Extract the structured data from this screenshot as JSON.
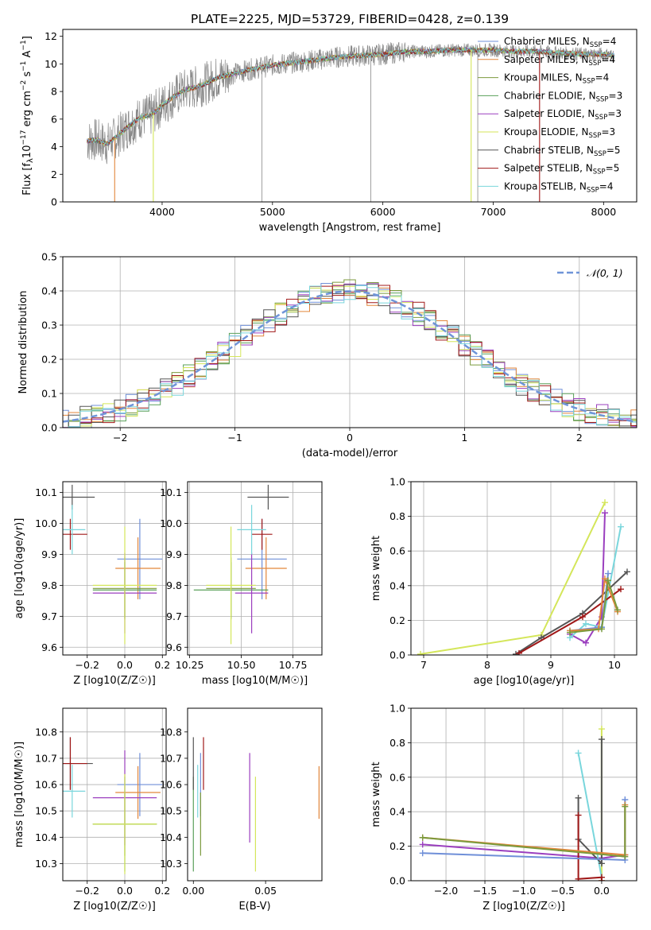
{
  "figure": {
    "title": "PLATE=2225, MJD=53729, FIBERID=0428, z=0.139"
  },
  "model_colors": [
    "#6f8fd8",
    "#e2863b",
    "#7b9a3c",
    "#5aa05a",
    "#9b3fbf",
    "#d4e65a",
    "#555555",
    "#a01818",
    "#79d6dc"
  ],
  "chart_data": [
    {
      "id": "spectrum",
      "type": "line",
      "xlabel": "wavelength [Angstrom, rest frame]",
      "ylabel": "Flux [f_λ 10^-17 erg cm^-2 s^-1 A^-1]",
      "xlim": [
        3100,
        8300
      ],
      "ylim": [
        0,
        12.5
      ],
      "xticks": [
        4000,
        5000,
        6000,
        7000,
        8000
      ],
      "yticks": [
        0,
        2,
        4,
        6,
        8,
        10,
        12
      ],
      "grid": false,
      "legend_position": "top-right",
      "legend": [
        "Chabrier MILES, N_SSP=4",
        "Salpeter MILES, N_SSP=4",
        "Kroupa MILES, N_SSP=4",
        "Chabrier ELODIE, N_SSP=3",
        "Salpeter ELODIE, N_SSP=3",
        "Kroupa ELODIE, N_SSP=3",
        "Chabrier STELIB, N_SSP=5",
        "Salpeter STELIB, N_SSP=5",
        "Kroupa STELIB, N_SSP=4"
      ],
      "continuum": {
        "x": [
          3320,
          3400,
          3500,
          3600,
          3700,
          3800,
          3900,
          4000,
          4100,
          4200,
          4300,
          4400,
          4500,
          4600,
          4800,
          5000,
          5200,
          5400,
          5600,
          5800,
          6000,
          6200,
          6400,
          6600,
          6800,
          7000,
          7200,
          7400,
          7600,
          7800,
          8000,
          8100
        ],
        "y": [
          4.4,
          4.5,
          4.2,
          4.8,
          5.5,
          6.1,
          6.3,
          7.0,
          7.6,
          8.1,
          8.3,
          8.6,
          9.0,
          9.2,
          9.6,
          9.9,
          10.1,
          10.3,
          10.5,
          10.6,
          10.7,
          10.9,
          10.9,
          11.0,
          11.0,
          11.0,
          10.9,
          10.9,
          10.8,
          10.7,
          10.7,
          10.6
        ]
      },
      "data_spikes": [
        4905,
        5890,
        6860
      ],
      "model_dropouts": [
        {
          "model": 1,
          "x": 3570
        },
        {
          "model": 5,
          "x": 3920
        },
        {
          "model": 5,
          "x": 6800
        },
        {
          "model": 7,
          "x": 7420
        }
      ]
    },
    {
      "id": "residuals",
      "type": "bar",
      "xlabel": "(data-model)/error",
      "ylabel": "Normed distribution",
      "xlim": [
        -2.5,
        2.5
      ],
      "ylim": [
        0,
        0.5
      ],
      "xticks": [
        -2,
        -1,
        0,
        1,
        2
      ],
      "yticks": [
        0.0,
        0.1,
        0.2,
        0.3,
        0.4,
        0.5
      ],
      "grid": true,
      "legend_position": "top-right",
      "reference_label": "𝒩(0, 1)",
      "bin_width": 0.1,
      "n_models": 9
    },
    {
      "id": "age_vs_Z",
      "type": "scatter",
      "xlabel": "Z [log10(Z/Z☉)]",
      "ylabel": "age [log10(age/yr)]",
      "xlim": [
        -0.33,
        0.22
      ],
      "ylim": [
        9.575,
        10.135
      ],
      "xticks": [
        -0.2,
        0.0,
        0.2
      ],
      "yticks": [
        9.6,
        9.7,
        9.8,
        9.9,
        10.0,
        10.1
      ],
      "grid": true,
      "points": [
        {
          "m": 0,
          "x": 0.08,
          "xerr": 0.12,
          "y": 9.885,
          "yerr": 0.13
        },
        {
          "m": 1,
          "x": 0.07,
          "xerr": 0.12,
          "y": 9.855,
          "yerr": 0.1
        },
        {
          "m": 2,
          "x": 0.0,
          "xerr": 0.17,
          "y": 9.79,
          "yerr": 0.1
        },
        {
          "m": 3,
          "x": 0.0,
          "xerr": 0.17,
          "y": 9.785,
          "yerr": 0.09
        },
        {
          "m": 4,
          "x": 0.0,
          "xerr": 0.17,
          "y": 9.775,
          "yerr": 0.13
        },
        {
          "m": 5,
          "x": 0.0,
          "xerr": 0.17,
          "y": 9.8,
          "yerr": 0.19
        },
        {
          "m": 6,
          "x": -0.28,
          "xerr": 0.12,
          "y": 10.085,
          "yerr": 0.04
        },
        {
          "m": 7,
          "x": -0.29,
          "xerr": 0.09,
          "y": 9.965,
          "yerr": 0.05
        },
        {
          "m": 8,
          "x": -0.28,
          "xerr": 0.07,
          "y": 9.98,
          "yerr": 0.08
        }
      ]
    },
    {
      "id": "age_vs_mass",
      "type": "scatter",
      "xlabel": "mass [log10(M/M☉)]",
      "ylabel": "",
      "xlim": [
        10.24,
        10.89
      ],
      "ylim": [
        9.575,
        10.135
      ],
      "xticks": [
        10.25,
        10.5,
        10.75
      ],
      "yticks": [
        9.6,
        9.7,
        9.8,
        9.9,
        10.0,
        10.1
      ],
      "grid": true,
      "points": [
        {
          "m": 0,
          "x": 10.6,
          "xerr": 0.12,
          "y": 9.885,
          "yerr": 0.13
        },
        {
          "m": 1,
          "x": 10.62,
          "xerr": 0.1,
          "y": 9.855,
          "yerr": 0.1
        },
        {
          "m": 2,
          "x": 10.45,
          "xerr": 0.12,
          "y": 9.79,
          "yerr": 0.1
        },
        {
          "m": 3,
          "x": 10.45,
          "xerr": 0.18,
          "y": 9.785,
          "yerr": 0.09
        },
        {
          "m": 4,
          "x": 10.55,
          "xerr": 0.08,
          "y": 9.775,
          "yerr": 0.13
        },
        {
          "m": 5,
          "x": 10.45,
          "xerr": 0.12,
          "y": 9.8,
          "yerr": 0.19
        },
        {
          "m": 6,
          "x": 10.63,
          "xerr": 0.1,
          "y": 10.085,
          "yerr": 0.04
        },
        {
          "m": 7,
          "x": 10.6,
          "xerr": 0.05,
          "y": 9.965,
          "yerr": 0.05
        },
        {
          "m": 8,
          "x": 10.55,
          "xerr": 0.07,
          "y": 9.98,
          "yerr": 0.08
        }
      ]
    },
    {
      "id": "weight_vs_age",
      "type": "line",
      "xlabel": "age [log10(age/yr)]",
      "ylabel": "mass weight",
      "xlim": [
        6.8,
        10.35
      ],
      "ylim": [
        0,
        1.0
      ],
      "xticks": [
        7,
        8,
        9,
        10
      ],
      "yticks": [
        0.0,
        0.2,
        0.4,
        0.6,
        0.8,
        1.0
      ],
      "grid": true,
      "series": [
        {
          "m": 5,
          "x": [
            6.95,
            8.85,
            9.85
          ],
          "y": [
            0.005,
            0.115,
            0.88
          ]
        },
        {
          "m": 4,
          "x": [
            9.3,
            9.55,
            9.8,
            9.85
          ],
          "y": [
            0.12,
            0.07,
            0.22,
            0.82
          ]
        },
        {
          "m": 8,
          "x": [
            9.3,
            9.55,
            9.8,
            10.1
          ],
          "y": [
            0.1,
            0.18,
            0.16,
            0.74
          ]
        },
        {
          "m": 6,
          "x": [
            8.45,
            8.85,
            9.5,
            10.2
          ],
          "y": [
            0.005,
            0.1,
            0.24,
            0.48
          ]
        },
        {
          "m": 7,
          "x": [
            8.5,
            9.5,
            10.1
          ],
          "y": [
            0.01,
            0.22,
            0.38
          ]
        },
        {
          "m": 0,
          "x": [
            9.3,
            9.8,
            9.9
          ],
          "y": [
            0.14,
            0.16,
            0.47
          ]
        },
        {
          "m": 1,
          "x": [
            9.3,
            9.75,
            9.85,
            10.05
          ],
          "y": [
            0.14,
            0.15,
            0.44,
            0.25
          ]
        },
        {
          "m": 2,
          "x": [
            9.3,
            9.8,
            9.9,
            10.05
          ],
          "y": [
            0.13,
            0.15,
            0.43,
            0.26
          ]
        }
      ]
    },
    {
      "id": "mass_vs_Z",
      "type": "scatter",
      "xlabel": "Z [log10(Z/Z☉)]",
      "ylabel": "mass [log10(M/M☉)]",
      "xlim": [
        -0.33,
        0.22
      ],
      "ylim": [
        10.235,
        10.89
      ],
      "xticks": [
        -0.2,
        0.0,
        0.2
      ],
      "yticks": [
        10.3,
        10.4,
        10.5,
        10.6,
        10.7,
        10.8
      ],
      "grid": true,
      "points": [
        {
          "m": 0,
          "x": 0.08,
          "xerr": 0.12,
          "y": 10.6,
          "yerr": 0.12
        },
        {
          "m": 1,
          "x": 0.07,
          "xerr": 0.12,
          "y": 10.57,
          "yerr": 0.1
        },
        {
          "m": 2,
          "x": 0.0,
          "xerr": 0.17,
          "y": 10.45,
          "yerr": 0.12
        },
        {
          "m": 3,
          "x": 0.0,
          "xerr": 0.17,
          "y": 10.45,
          "yerr": 0.18
        },
        {
          "m": 4,
          "x": 0.0,
          "xerr": 0.17,
          "y": 10.55,
          "yerr": 0.18
        },
        {
          "m": 5,
          "x": 0.0,
          "xerr": 0.17,
          "y": 10.45,
          "yerr": 0.19
        },
        {
          "m": 6,
          "x": -0.29,
          "xerr": 0.12,
          "y": 10.68,
          "yerr": 0.1
        },
        {
          "m": 7,
          "x": -0.29,
          "xerr": 0.09,
          "y": 10.68,
          "yerr": 0.1
        },
        {
          "m": 8,
          "x": -0.28,
          "xerr": 0.07,
          "y": 10.575,
          "yerr": 0.1
        }
      ]
    },
    {
      "id": "mass_vs_ebv",
      "type": "scatter",
      "xlabel": "E(B-V)",
      "ylabel": "",
      "xlim": [
        -0.004,
        0.089
      ],
      "ylim": [
        10.235,
        10.89
      ],
      "xticks": [
        0.0,
        0.05
      ],
      "yticks": [
        10.3,
        10.4,
        10.5,
        10.6,
        10.7,
        10.8
      ],
      "grid": false,
      "points": [
        {
          "m": 0,
          "x": 0.005,
          "y": 10.6,
          "yerr": 0.12
        },
        {
          "m": 1,
          "x": 0.087,
          "y": 10.57,
          "yerr": 0.1
        },
        {
          "m": 2,
          "x": 0.005,
          "y": 10.45,
          "yerr": 0.12
        },
        {
          "m": 3,
          "x": 0.0,
          "y": 10.45,
          "yerr": 0.18
        },
        {
          "m": 4,
          "x": 0.039,
          "y": 10.55,
          "yerr": 0.17
        },
        {
          "m": 5,
          "x": 0.043,
          "y": 10.45,
          "yerr": 0.18
        },
        {
          "m": 6,
          "x": 0.0,
          "y": 10.68,
          "yerr": 0.1
        },
        {
          "m": 7,
          "x": 0.007,
          "y": 10.68,
          "yerr": 0.1
        },
        {
          "m": 8,
          "x": 0.003,
          "y": 10.575,
          "yerr": 0.1
        }
      ]
    },
    {
      "id": "weight_vs_Z",
      "type": "line",
      "xlabel": "Z [log10(Z/Z☉)]",
      "ylabel": "mass weight",
      "xlim": [
        -2.45,
        0.45
      ],
      "ylim": [
        0,
        1.0
      ],
      "xticks": [
        -2.0,
        -1.5,
        -1.0,
        -0.5,
        0.0
      ],
      "yticks": [
        0.0,
        0.2,
        0.4,
        0.6,
        0.8,
        1.0
      ],
      "grid": true,
      "series": [
        {
          "m": 5,
          "x": [
            0.0,
            0.0
          ],
          "y": [
            0.88,
            0.0
          ]
        },
        {
          "m": 4,
          "x": [
            -2.3,
            0.0,
            0.3
          ],
          "y": [
            0.21,
            0.13,
            0.15
          ]
        },
        {
          "m": 8,
          "x": [
            -0.3,
            0.0
          ],
          "y": [
            0.74,
            0.02
          ]
        },
        {
          "m": 6,
          "x": [
            -0.3,
            -0.3,
            0.0,
            0.0
          ],
          "y": [
            0.48,
            0.24,
            0.1,
            0.82
          ]
        },
        {
          "m": 7,
          "x": [
            -0.3,
            -0.3,
            0.0,
            0.0
          ],
          "y": [
            0.38,
            0.01,
            0.02,
            0.0
          ]
        },
        {
          "m": 0,
          "x": [
            -2.3,
            0.3,
            0.3
          ],
          "y": [
            0.16,
            0.12,
            0.47
          ]
        },
        {
          "m": 1,
          "x": [
            -2.3,
            0.3,
            0.3
          ],
          "y": [
            0.25,
            0.15,
            0.44
          ]
        },
        {
          "m": 2,
          "x": [
            -2.3,
            0.3,
            0.3
          ],
          "y": [
            0.25,
            0.14,
            0.43
          ]
        }
      ]
    }
  ]
}
